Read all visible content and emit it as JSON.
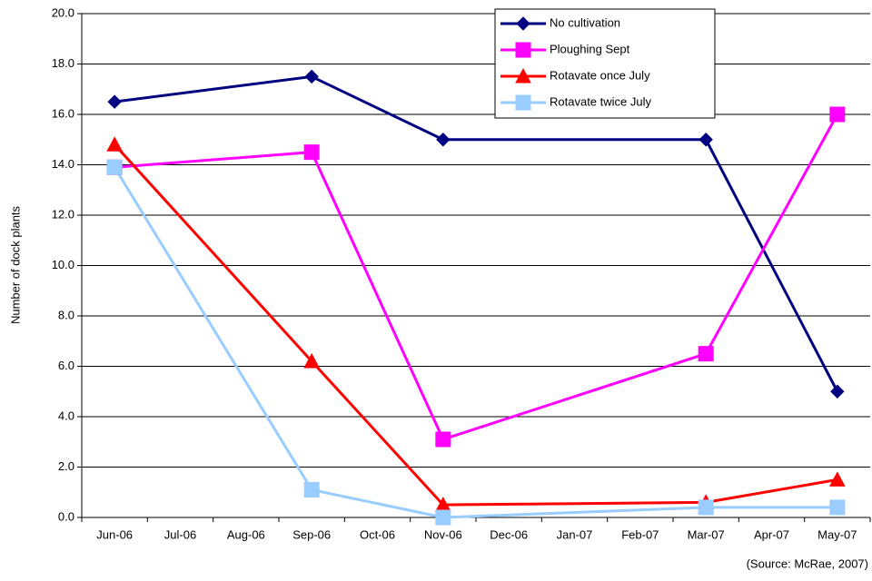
{
  "chart_data": {
    "type": "line",
    "y_label": "Number of dock plants",
    "source": "(Source: McRae, 2007)",
    "categories": [
      "Jun-06",
      "Jul-06",
      "Aug-06",
      "Sep-06",
      "Oct-06",
      "Nov-06",
      "Dec-06",
      "Jan-07",
      "Feb-07",
      "Mar-07",
      "Apr-07",
      "May-07"
    ],
    "series": [
      {
        "name": "No cultivation",
        "color": "#000080",
        "marker": "diamond",
        "values": [
          16.5,
          null,
          null,
          17.5,
          null,
          15,
          null,
          null,
          null,
          15,
          null,
          5
        ]
      },
      {
        "name": "Ploughing Sept",
        "color": "#ff00ff",
        "marker": "square",
        "values": [
          13.9,
          null,
          null,
          14.5,
          null,
          3.1,
          null,
          null,
          null,
          6.5,
          null,
          16
        ]
      },
      {
        "name": "Rotavate once July",
        "color": "#ff0000",
        "marker": "triangle",
        "values": [
          14.8,
          null,
          null,
          6.2,
          null,
          0.5,
          null,
          null,
          null,
          0.6,
          null,
          1.5
        ]
      },
      {
        "name": "Rotavate twice July",
        "color": "#99ccff",
        "marker": "square",
        "values": [
          13.9,
          null,
          null,
          1.1,
          null,
          0,
          null,
          null,
          null,
          0.4,
          null,
          0.4
        ]
      }
    ],
    "span_gaps": true,
    "ylim": [
      0,
      20
    ],
    "yticks": [
      {
        "value": 0,
        "label": "0.0"
      },
      {
        "value": 2,
        "label": "2.0"
      },
      {
        "value": 4,
        "label": "4.0"
      },
      {
        "value": 6,
        "label": "6.0"
      },
      {
        "value": 8,
        "label": "8.0"
      },
      {
        "value": 10,
        "label": "10.0"
      },
      {
        "value": 12,
        "label": "12.0"
      },
      {
        "value": 14,
        "label": "14.0"
      },
      {
        "value": 16,
        "label": "16.0"
      },
      {
        "value": 18,
        "label": "18.0"
      },
      {
        "value": 20,
        "label": "20.0"
      }
    ],
    "grid": true,
    "legend": "top-right"
  }
}
